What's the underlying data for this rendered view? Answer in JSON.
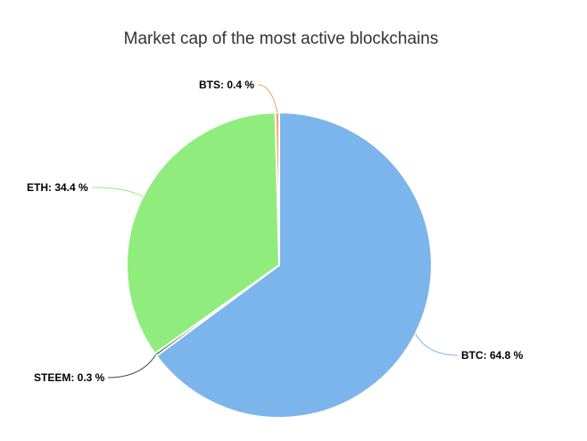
{
  "chart_data": {
    "type": "pie",
    "title": "Market cap of the most active blockchains",
    "value_unit": "%",
    "slices": [
      {
        "name": "BTC",
        "value": 64.8,
        "color": "#7cb5ec",
        "label": "BTC: 64.8 %"
      },
      {
        "name": "STEEM",
        "value": 0.3,
        "color": "#434348",
        "label": "STEEM: 0.3 %"
      },
      {
        "name": "ETH",
        "value": 34.4,
        "color": "#90ed7d",
        "label": "ETH: 34.4 %"
      },
      {
        "name": "BTS",
        "value": 0.4,
        "color": "#f7a35c",
        "label": "BTS: 0.4 %"
      }
    ],
    "layout": {
      "start_angle_deg": 0,
      "direction": "clockwise",
      "labels": "outside-with-connectors",
      "legend": "none",
      "grid": "off",
      "border_color": "#ffffff"
    },
    "background_color": "#ffffff",
    "title_color": "#333333",
    "label_color": "#000000"
  }
}
